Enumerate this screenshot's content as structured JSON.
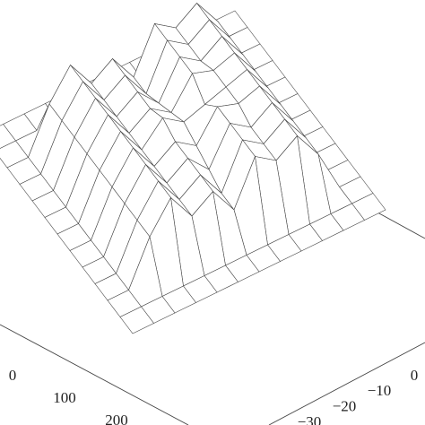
{
  "chart_data": {
    "type": "surface",
    "xticks": [
      0,
      100,
      200
    ],
    "yticks": [
      0,
      {
        "value": -10,
        "label": "−10"
      },
      {
        "value": -20,
        "label": "−20"
      },
      {
        "value": -30,
        "label": "−30"
      }
    ],
    "z": [
      [
        0,
        0,
        0,
        0,
        0,
        0,
        0,
        0,
        0,
        0,
        0,
        0,
        0
      ],
      [
        0,
        0,
        0,
        0,
        0,
        0,
        0,
        0,
        0,
        0,
        0,
        0,
        0
      ],
      [
        0,
        0,
        3,
        5,
        4,
        5,
        2,
        4,
        3,
        5,
        3,
        0,
        0
      ],
      [
        0,
        0,
        3,
        5,
        4,
        5,
        2,
        4,
        3,
        5,
        3,
        0,
        0
      ],
      [
        0,
        0,
        3,
        5,
        4,
        5,
        2.5,
        4,
        3,
        5,
        3,
        0,
        0
      ],
      [
        0,
        0,
        3,
        5,
        4.5,
        5,
        3,
        4,
        3,
        5,
        3,
        0,
        0
      ],
      [
        0,
        0,
        3,
        5,
        4.5,
        4,
        3.5,
        4.5,
        3,
        5,
        3,
        0,
        0
      ],
      [
        0,
        0,
        3,
        5,
        4.5,
        5,
        3,
        4,
        3,
        5,
        3,
        0,
        0
      ],
      [
        0,
        0,
        3,
        5,
        4,
        5,
        2.5,
        4,
        3,
        5,
        3,
        0,
        0
      ],
      [
        0,
        0,
        3,
        5,
        4,
        5,
        2,
        4,
        3,
        5,
        3,
        0,
        0
      ],
      [
        0,
        0,
        3,
        5,
        4,
        5,
        2,
        4,
        3,
        5,
        3,
        0,
        0
      ],
      [
        0,
        0,
        0,
        0,
        0,
        0,
        0,
        0,
        0,
        0,
        0,
        0,
        0
      ],
      [
        0,
        0,
        0,
        0,
        0,
        0,
        0,
        0,
        0,
        0,
        0,
        0,
        0
      ]
    ]
  }
}
